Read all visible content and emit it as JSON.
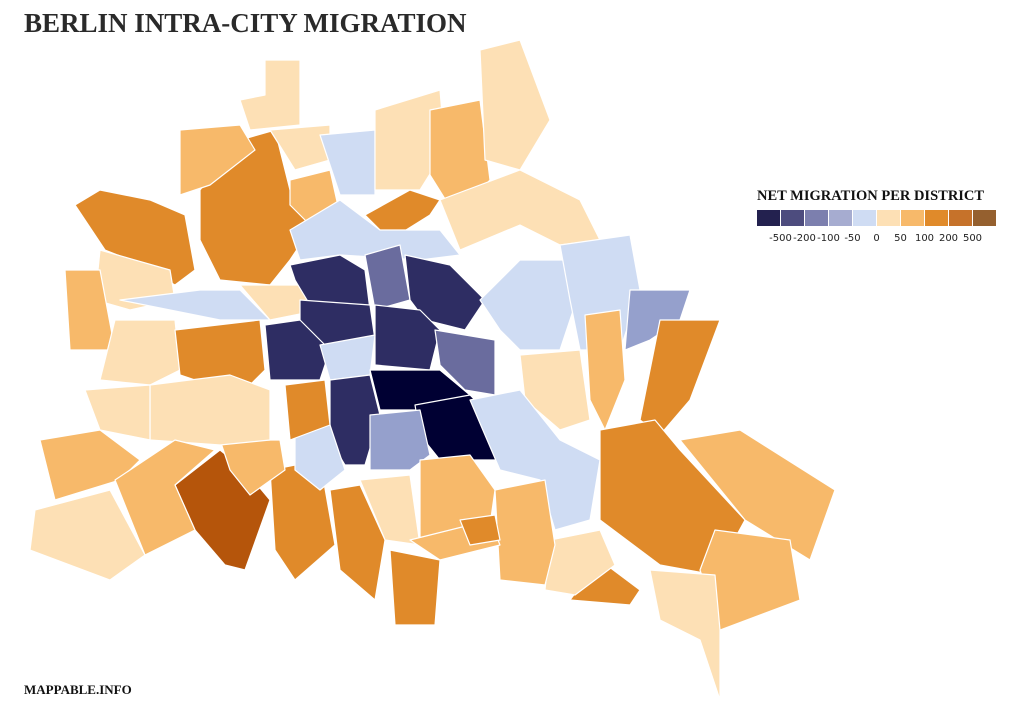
{
  "title": "BERLIN INTRA-CITY MIGRATION",
  "legend": {
    "title": "NET MIGRATION PER DISTRICT",
    "colors": [
      "#23214f",
      "#4d4c7e",
      "#7c7fae",
      "#a6acd0",
      "#cfdcf3",
      "#fde0b5",
      "#f7b96a",
      "#e08a2a",
      "#c6722a",
      "#95602f"
    ],
    "breaks": [
      -500,
      -200,
      -100,
      -50,
      0,
      50,
      100,
      200,
      500
    ]
  },
  "source": "MAPPABLE.INFO"
}
